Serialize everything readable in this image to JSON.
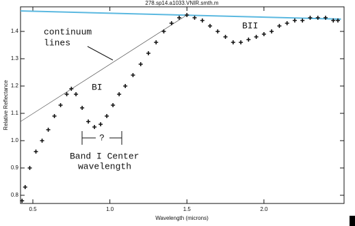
{
  "chart_data": {
    "type": "scatter",
    "title": "278.sp14.a1033.VNIR.smth.m",
    "x_label": "Wavelength (microns)",
    "y_label": "Relative Reflectance",
    "x": [
      0.43,
      0.45,
      0.48,
      0.52,
      0.56,
      0.6,
      0.64,
      0.68,
      0.72,
      0.75,
      0.78,
      0.82,
      0.86,
      0.9,
      0.94,
      0.98,
      1.02,
      1.06,
      1.1,
      1.15,
      1.2,
      1.25,
      1.3,
      1.35,
      1.4,
      1.45,
      1.5,
      1.55,
      1.6,
      1.65,
      1.7,
      1.75,
      1.8,
      1.85,
      1.9,
      1.95,
      2.0,
      2.05,
      2.1,
      2.15,
      2.2,
      2.25,
      2.3,
      2.35,
      2.4,
      2.45,
      2.48
    ],
    "values": [
      0.78,
      0.83,
      0.9,
      0.96,
      1.0,
      1.04,
      1.09,
      1.13,
      1.17,
      1.19,
      1.17,
      1.12,
      1.07,
      1.05,
      1.06,
      1.09,
      1.13,
      1.17,
      1.2,
      1.24,
      1.28,
      1.32,
      1.36,
      1.4,
      1.43,
      1.45,
      1.46,
      1.45,
      1.44,
      1.42,
      1.4,
      1.38,
      1.36,
      1.36,
      1.37,
      1.38,
      1.39,
      1.4,
      1.42,
      1.43,
      1.44,
      1.44,
      1.45,
      1.45,
      1.45,
      1.44,
      1.44
    ],
    "color": "#111111",
    "continuum": [
      {
        "x": [
          0.42,
          2.5
        ],
        "values": [
          1.475,
          1.445
        ],
        "color": "#5ab8e0"
      },
      {
        "x": [
          0.42,
          1.5
        ],
        "values": [
          1.07,
          1.46
        ],
        "color": "#555555"
      }
    ],
    "xlim": [
      0.42,
      2.52
    ],
    "ylim": [
      0.77,
      1.49
    ],
    "xticks": [
      0.5,
      {
        "value": 1,
        "label": "1.0"
      },
      1.5,
      {
        "value": 2,
        "label": "2.0"
      }
    ],
    "yticks": [
      0.8,
      0.9,
      {
        "value": 1,
        "label": "1.0"
      },
      1.1,
      1.2,
      1.3,
      1.4
    ],
    "annotations": [
      "continuum",
      "lines",
      "BI",
      "BII",
      "?",
      "Band I Center",
      "wavelength"
    ]
  }
}
